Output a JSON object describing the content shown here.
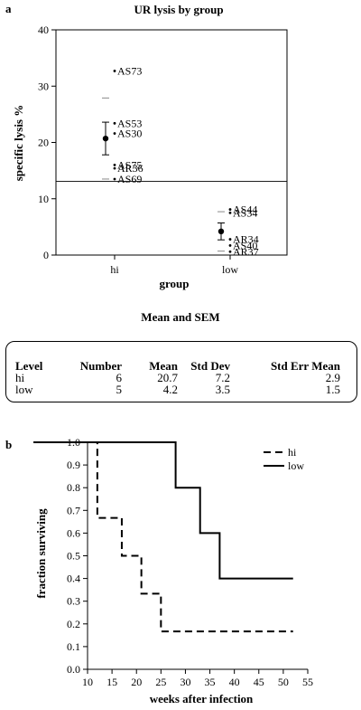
{
  "panels": {
    "a": "a",
    "b": "b"
  },
  "chart_data": [
    {
      "type": "scatter",
      "title": "UR lysis by group",
      "xlabel": "group",
      "ylabel": "specific lysis %",
      "categories": [
        "hi",
        "low"
      ],
      "ylim": [
        0,
        40
      ],
      "yticks": [
        0,
        10,
        20,
        30,
        40
      ],
      "reference_line": 13.1,
      "points": [
        {
          "group": "hi",
          "label": "AS73",
          "value": 32.7
        },
        {
          "group": "hi",
          "label": "AS53",
          "value": 23.4
        },
        {
          "group": "hi",
          "label": "AS30",
          "value": 21.6
        },
        {
          "group": "hi",
          "label": "AS75",
          "value": 16.0
        },
        {
          "group": "hi",
          "label": "AR36",
          "value": 15.4
        },
        {
          "group": "hi",
          "label": "AS69",
          "value": 13.5
        },
        {
          "group": "low",
          "label": "AS44",
          "value": 8.1
        },
        {
          "group": "low",
          "label": "AS34",
          "value": 7.5
        },
        {
          "group": "low",
          "label": "AR34",
          "value": 2.8
        },
        {
          "group": "low",
          "label": "AS40",
          "value": 1.7
        },
        {
          "group": "low",
          "label": "AR37",
          "value": 0.6
        }
      ],
      "group_stats": [
        {
          "group": "hi",
          "mean": 20.7,
          "sem_low": 17.8,
          "sem_high": 23.6,
          "sd_low": 13.5,
          "sd_high": 27.9
        },
        {
          "group": "low",
          "mean": 4.2,
          "sem_low": 2.7,
          "sem_high": 5.7,
          "sd_low": 0.7,
          "sd_high": 7.7
        }
      ]
    },
    {
      "type": "line",
      "xlabel": "weeks after infection",
      "ylabel": "fraction surviving",
      "xlim": [
        10,
        55
      ],
      "ylim": [
        0,
        1
      ],
      "xticks": [
        10,
        15,
        20,
        25,
        30,
        35,
        40,
        45,
        50,
        55
      ],
      "yticks": [
        "0.0",
        "0.1",
        "0.2",
        "0.3",
        "0.4",
        "0.5",
        "0.6",
        "0.7",
        "0.8",
        "0.9",
        "1.0"
      ],
      "legend_position": "top-right",
      "series": [
        {
          "name": "hi",
          "style": "dashed",
          "steps": [
            [
              0,
              1.0
            ],
            [
              12,
              0.667
            ],
            [
              17,
              0.5
            ],
            [
              21,
              0.333
            ],
            [
              25,
              0.167
            ],
            [
              52,
              0.167
            ]
          ]
        },
        {
          "name": "low",
          "style": "solid",
          "steps": [
            [
              0,
              1.0
            ],
            [
              28,
              0.8
            ],
            [
              33,
              0.6
            ],
            [
              37,
              0.4
            ],
            [
              52,
              0.4
            ]
          ]
        }
      ]
    }
  ],
  "table": {
    "title": "Mean and SEM",
    "headers": [
      "Level",
      "Number",
      "Mean",
      "Std Dev",
      "Std Err Mean"
    ],
    "rows": [
      [
        "hi",
        "6",
        "20.7",
        "7.2",
        "2.9"
      ],
      [
        "low",
        "5",
        "4.2",
        "3.5",
        "1.5"
      ]
    ]
  }
}
